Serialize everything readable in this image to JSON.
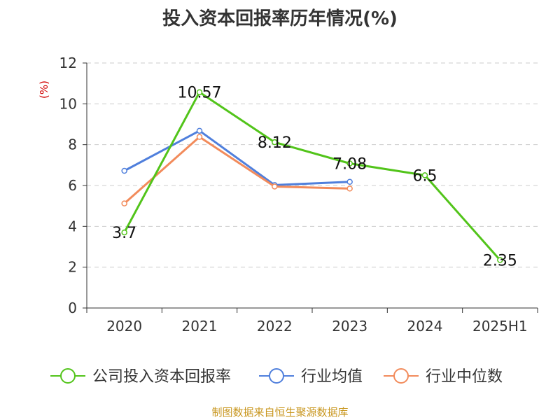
{
  "chart_data": {
    "type": "line",
    "title": "投入资本回报率历年情况(%)",
    "ylabel": "(%)",
    "xlabel": "",
    "categories": [
      "2020",
      "2021",
      "2022",
      "2023",
      "2024",
      "2025H1"
    ],
    "ylim": [
      0,
      12
    ],
    "yticks": [
      "0",
      "2",
      "4",
      "6",
      "8",
      "10",
      "12"
    ],
    "grid": true,
    "legend_position": "bottom",
    "series": [
      {
        "name": "公司投入资本回报率",
        "color": "#52c41a",
        "values": [
          3.7,
          10.57,
          8.12,
          7.08,
          6.5,
          2.35
        ],
        "labels": [
          "3.7",
          "10.57",
          "8.12",
          "7.08",
          "6.5",
          "2.35"
        ]
      },
      {
        "name": "行业均值",
        "color": "#4f7fdc",
        "values": [
          6.72,
          8.68,
          6.02,
          6.18,
          null,
          null
        ]
      },
      {
        "name": "行业中位数",
        "color": "#f28b5b",
        "values": [
          5.12,
          8.38,
          5.95,
          5.85,
          null,
          null
        ]
      }
    ]
  },
  "source": "制图数据来自恒生聚源数据库"
}
